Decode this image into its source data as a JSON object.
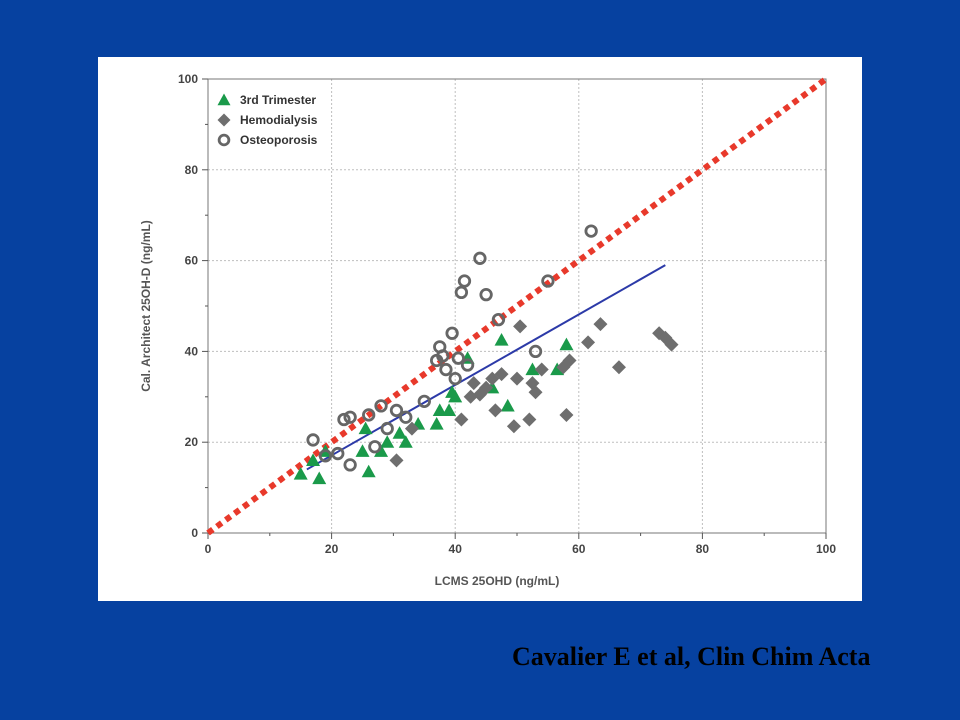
{
  "citation": "Cavalier E et al, Clin Chim Acta",
  "colors": {
    "background": "#0641a0",
    "citation": "#000000",
    "identity_line": "#e8392b",
    "regression_line": "#2c3aa8",
    "trimester": "#1a9a4a",
    "hemodialysis": "#6e6e6e",
    "osteoporosis": "#666666",
    "grid": "#bfbfbf"
  },
  "chart_data": {
    "type": "scatter",
    "title": "",
    "xlabel": "LCMS 25OHD (ng/mL)",
    "ylabel": "Cal. Architect 25OH-D (ng/mL)",
    "xlim": [
      0,
      100
    ],
    "ylim": [
      0,
      100
    ],
    "x_ticks": [
      "0",
      "20",
      "40",
      "60",
      "80",
      "100"
    ],
    "y_ticks": [
      "0",
      "20",
      "40",
      "60",
      "80",
      "100"
    ],
    "grid": true,
    "legend_position": "top-left",
    "series": [
      {
        "name": "3rd Trimester",
        "marker": "triangle",
        "color": "#1a9a4a",
        "points": [
          [
            15,
            13
          ],
          [
            18,
            12
          ],
          [
            17,
            16
          ],
          [
            19,
            18
          ],
          [
            25,
            18
          ],
          [
            26,
            13.5
          ],
          [
            25.5,
            23
          ],
          [
            28,
            18
          ],
          [
            29,
            20
          ],
          [
            31,
            22
          ],
          [
            32,
            20
          ],
          [
            34,
            24
          ],
          [
            37,
            24
          ],
          [
            37.5,
            27
          ],
          [
            39,
            27
          ],
          [
            39.5,
            31
          ],
          [
            40,
            30
          ],
          [
            42,
            38.5
          ],
          [
            46,
            32
          ],
          [
            47.5,
            42.5
          ],
          [
            48.5,
            28
          ],
          [
            52.5,
            36
          ],
          [
            56.5,
            36
          ],
          [
            58,
            41.5
          ]
        ]
      },
      {
        "name": "Hemodialysis",
        "marker": "diamond",
        "color": "#6e6e6e",
        "points": [
          [
            30.5,
            16
          ],
          [
            33,
            23
          ],
          [
            41,
            25
          ],
          [
            42.5,
            30
          ],
          [
            43,
            33
          ],
          [
            44,
            30.5
          ],
          [
            45,
            32
          ],
          [
            46,
            34
          ],
          [
            46.5,
            27
          ],
          [
            47.5,
            35
          ],
          [
            49.5,
            23.5
          ],
          [
            50,
            34
          ],
          [
            50.5,
            45.5
          ],
          [
            52,
            25
          ],
          [
            52.5,
            33
          ],
          [
            53,
            31
          ],
          [
            54,
            36
          ],
          [
            57.5,
            36.5
          ],
          [
            58,
            26
          ],
          [
            58.5,
            38
          ],
          [
            61.5,
            42
          ],
          [
            63.5,
            46
          ],
          [
            66.5,
            36.5
          ],
          [
            73,
            44
          ],
          [
            74,
            43
          ],
          [
            75,
            41.5
          ]
        ]
      },
      {
        "name": "Osteoporosis",
        "marker": "open-circle",
        "color": "#666666",
        "points": [
          [
            17,
            20.5
          ],
          [
            19,
            17
          ],
          [
            21,
            17.5
          ],
          [
            22,
            25
          ],
          [
            23,
            25.5
          ],
          [
            23,
            15
          ],
          [
            26,
            26
          ],
          [
            27,
            19
          ],
          [
            28,
            28
          ],
          [
            29,
            23
          ],
          [
            30.5,
            27
          ],
          [
            32,
            25.5
          ],
          [
            35,
            29
          ],
          [
            37,
            38
          ],
          [
            37.5,
            41
          ],
          [
            38,
            39
          ],
          [
            38.5,
            36
          ],
          [
            39.5,
            44
          ],
          [
            40,
            34
          ],
          [
            40.5,
            38.5
          ],
          [
            41,
            53
          ],
          [
            41.5,
            55.5
          ],
          [
            42,
            37
          ],
          [
            44,
            60.5
          ],
          [
            45,
            52.5
          ],
          [
            47,
            47
          ],
          [
            53,
            40
          ],
          [
            55,
            55.5
          ],
          [
            62,
            66.5
          ]
        ]
      }
    ],
    "lines": [
      {
        "name": "identity",
        "style": "dotted",
        "color": "#e8392b",
        "x": [
          0,
          100
        ],
        "y": [
          0,
          100
        ]
      },
      {
        "name": "regression",
        "style": "solid",
        "color": "#2c3aa8",
        "x": [
          16,
          74
        ],
        "y": [
          14,
          59
        ]
      }
    ]
  }
}
